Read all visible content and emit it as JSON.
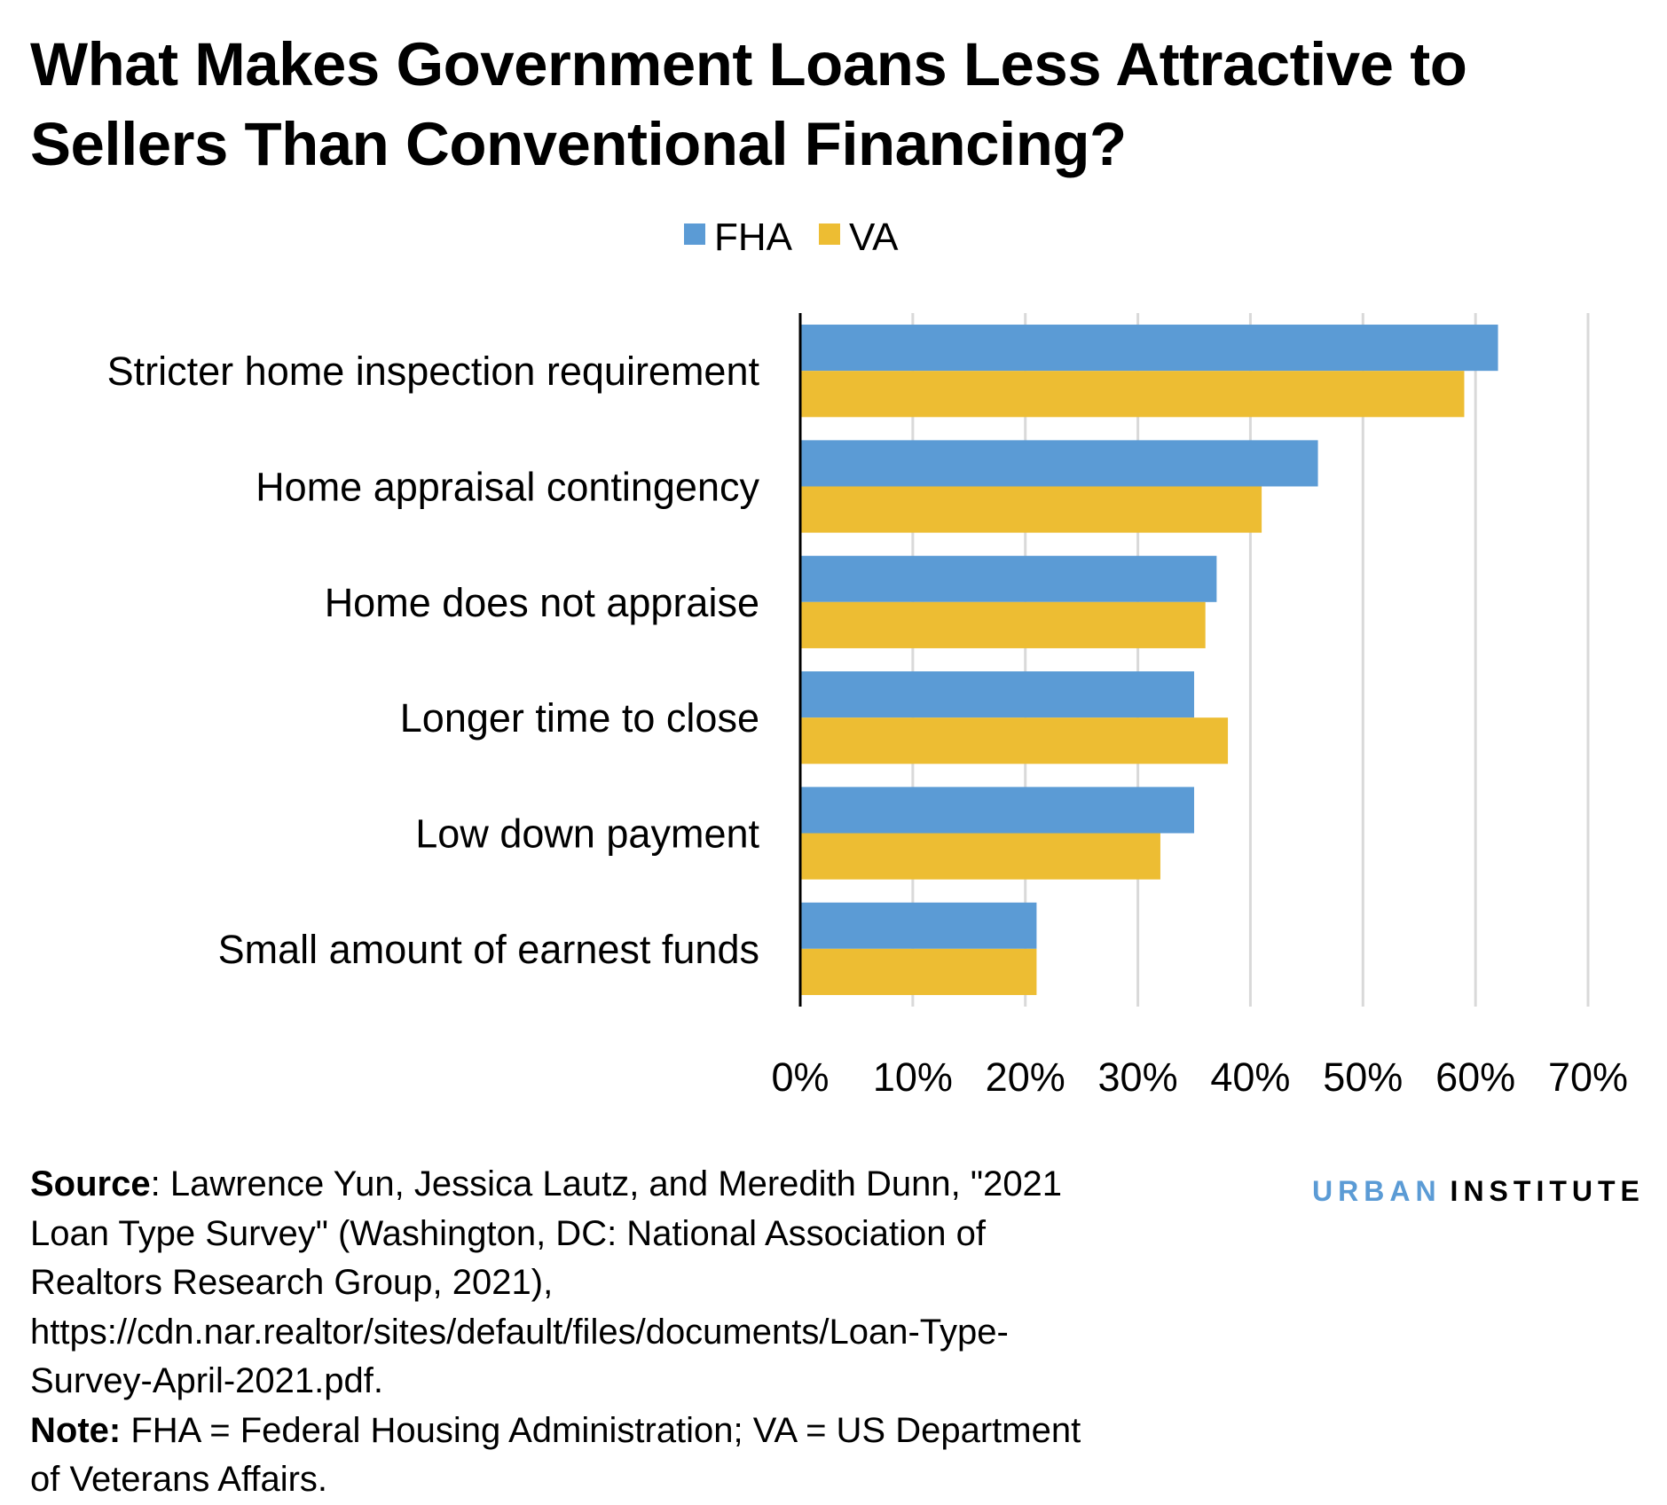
{
  "chart_data": {
    "type": "bar",
    "orientation": "horizontal",
    "title": "What Makes Government Loans Less Attractive to Sellers Than Conventional Financing?",
    "categories": [
      "Stricter home inspection requirement",
      "Home appraisal contingency",
      "Home does not appraise",
      "Longer time to close",
      "Low down payment",
      "Small amount of earnest funds"
    ],
    "series": [
      {
        "name": "FHA",
        "color": "#5b9bd5",
        "values": [
          62,
          46,
          37,
          35,
          35,
          21
        ]
      },
      {
        "name": "VA",
        "color": "#edbd33",
        "values": [
          59,
          41,
          36,
          38,
          32,
          21
        ]
      }
    ],
    "xlim": [
      0,
      70
    ],
    "xticks": [
      "0%",
      "10%",
      "20%",
      "30%",
      "40%",
      "50%",
      "60%",
      "70%"
    ],
    "grid": true,
    "legend": "top-center"
  },
  "source": {
    "label": "Source",
    "text": ": Lawrence Yun, Jessica Lautz, and Meredith Dunn, \"2021 Loan Type Survey\" (Washington, DC: National Association of Realtors Research Group, 2021), https://cdn.nar.realtor/sites/default/files/documents/Loan-Type-Survey-April-2021.pdf."
  },
  "note": {
    "label": "Note:",
    "text": " FHA = Federal Housing Administration; VA = US Department of Veterans Affairs."
  },
  "logo": {
    "part1": "URBAN",
    "part2": "INSTITUTE"
  }
}
